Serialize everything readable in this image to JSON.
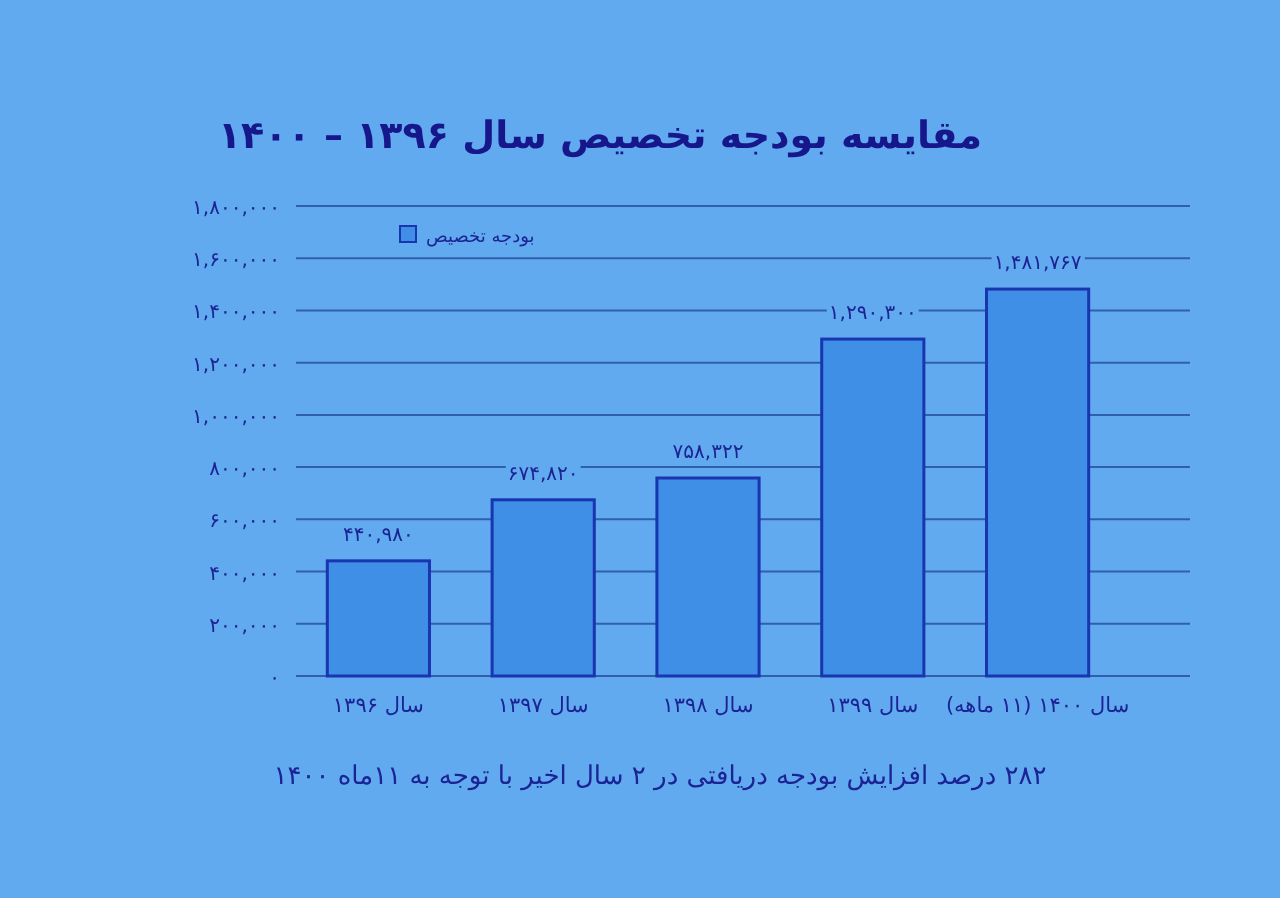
{
  "chart_data": {
    "type": "bar",
    "title": "مقایسه بودجه تخصیص سال ۱۳۹۶ – ۱۴۰۰",
    "categories": [
      "سال ۱۳۹۶",
      "سال ۱۳۹۷",
      "سال ۱۳۹۸",
      "سال ۱۳۹۹",
      "سال ۱۴۰۰ (۱۱ ماهه)"
    ],
    "series": [
      {
        "name": "بودجه تخصیص",
        "color": "#3f8fe6",
        "values": [
          440980,
          674820,
          758322,
          1290300,
          1481767
        ],
        "value_labels": [
          "۴۴۰,۹۸۰",
          "۶۷۴,۸۲۰",
          "۷۵۸,۳۲۲",
          "۱,۲۹۰,۳۰۰",
          "۱,۴۸۱,۷۶۷"
        ]
      }
    ],
    "ylim": [
      0,
      1800000
    ],
    "yticks": [
      {
        "value": 0,
        "label": "۰"
      },
      {
        "value": 200000,
        "label": "۲۰۰,۰۰۰"
      },
      {
        "value": 400000,
        "label": "۴۰۰,۰۰۰"
      },
      {
        "value": 600000,
        "label": "۶۰۰,۰۰۰"
      },
      {
        "value": 800000,
        "label": "۸۰۰,۰۰۰"
      },
      {
        "value": 1000000,
        "label": "۱,۰۰۰,۰۰۰"
      },
      {
        "value": 1200000,
        "label": "۱,۲۰۰,۰۰۰"
      },
      {
        "value": 1400000,
        "label": "۱,۴۰۰,۰۰۰"
      },
      {
        "value": 1600000,
        "label": "۱,۶۰۰,۰۰۰"
      },
      {
        "value": 1800000,
        "label": "۱,۸۰۰,۰۰۰"
      }
    ],
    "grid": "y",
    "legend": "top left",
    "annotations": [
      "۲۸۲ درصد افزایش بودجه دریافتی در ۲ سال اخیر با توجه به ۱۱ماه ۱۴۰۰"
    ]
  }
}
